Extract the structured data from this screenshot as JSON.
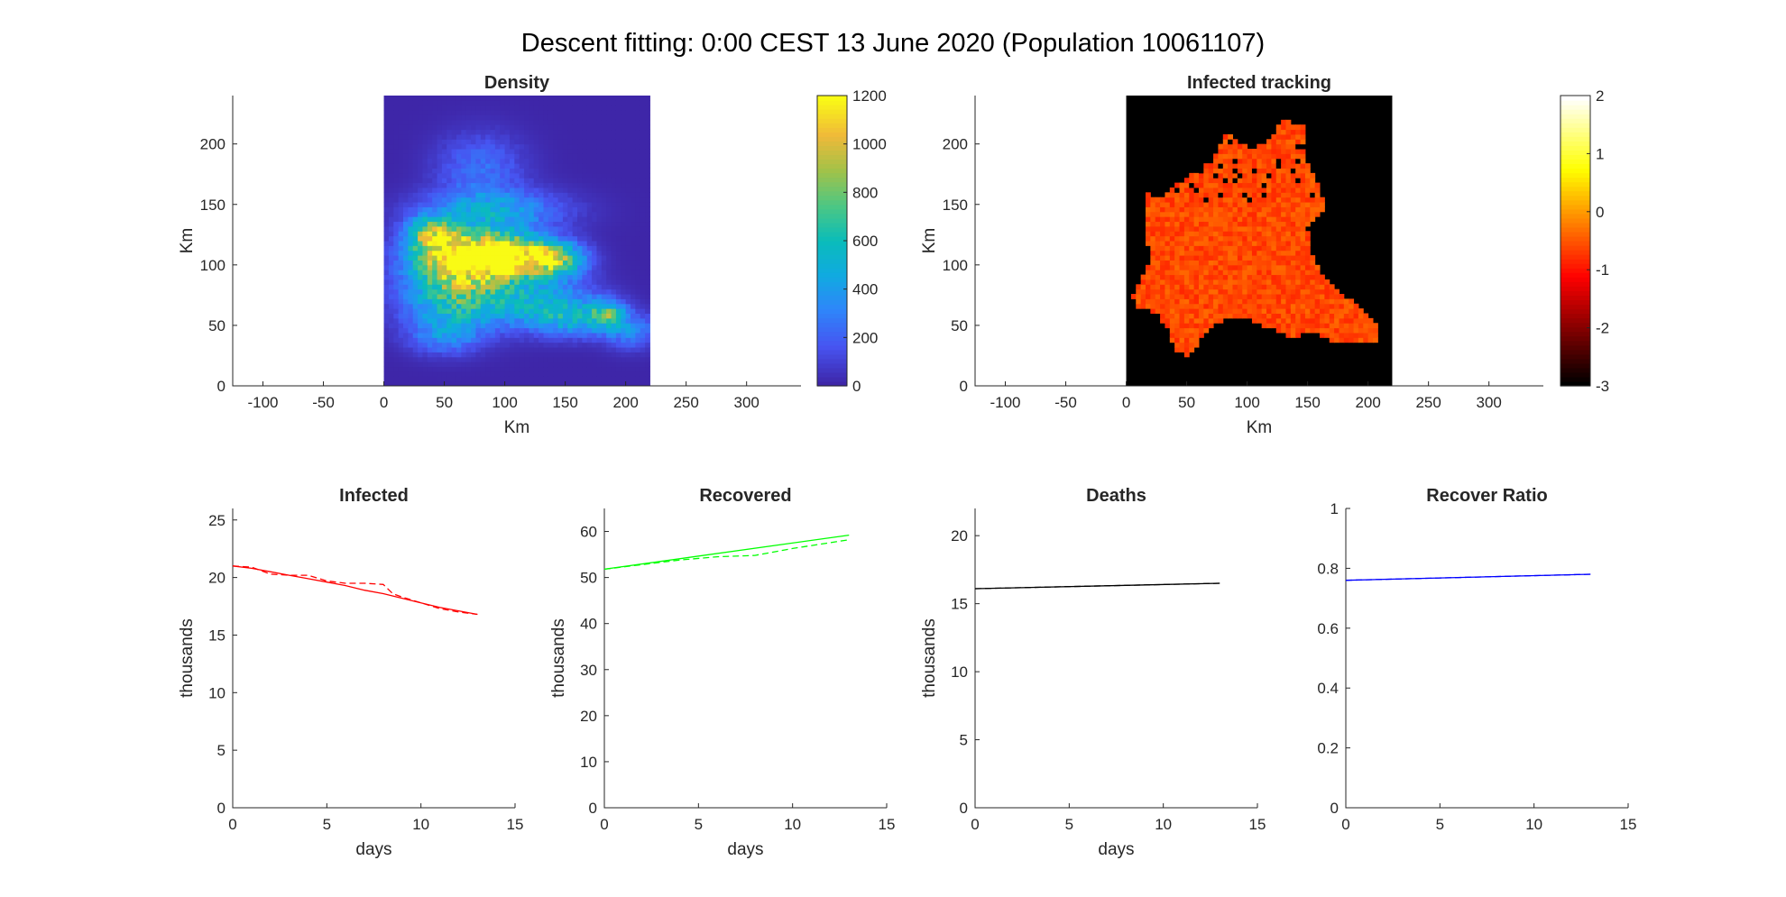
{
  "figure_title": "Descent fitting: 0:00 CEST 13 June 2020 (Population 10061107)",
  "colors": {
    "infected": "#ff0000",
    "recovered": "#00ff00",
    "deaths": "#000000",
    "recover_ratio": "#0000ff",
    "map_background_density": "#3e26a8",
    "map_background_tracking": "#000000"
  },
  "chart_data": [
    {
      "type": "heatmap",
      "title": "Density",
      "xlabel": "Km",
      "ylabel": "Km",
      "xlim": [
        -125,
        345
      ],
      "ylim": [
        0,
        240
      ],
      "xticks": [
        -100,
        -50,
        0,
        50,
        100,
        150,
        200,
        250,
        300
      ],
      "yticks": [
        0,
        50,
        100,
        150,
        200
      ],
      "data_extent_x": [
        0,
        220
      ],
      "data_extent_y": [
        0,
        240
      ],
      "colormap": "parula",
      "colorbar": {
        "range": [
          0,
          1200
        ],
        "ticks": [
          0,
          200,
          400,
          600,
          800,
          1000,
          1200
        ]
      },
      "blobs": [
        {
          "x": 65,
          "y": 105,
          "value": 1050,
          "sx": 30,
          "sy": 16
        },
        {
          "x": 100,
          "y": 108,
          "value": 950,
          "sx": 25,
          "sy": 12
        },
        {
          "x": 140,
          "y": 105,
          "value": 800,
          "sx": 18,
          "sy": 10
        },
        {
          "x": 40,
          "y": 125,
          "value": 700,
          "sx": 14,
          "sy": 10
        },
        {
          "x": 60,
          "y": 70,
          "value": 600,
          "sx": 30,
          "sy": 18
        },
        {
          "x": 130,
          "y": 70,
          "value": 450,
          "sx": 30,
          "sy": 14
        },
        {
          "x": 185,
          "y": 60,
          "value": 500,
          "sx": 10,
          "sy": 8
        },
        {
          "x": 90,
          "y": 145,
          "value": 420,
          "sx": 40,
          "sy": 12
        },
        {
          "x": 80,
          "y": 180,
          "value": 240,
          "sx": 25,
          "sy": 20
        },
        {
          "x": 160,
          "y": 55,
          "value": 380,
          "sx": 25,
          "sy": 10
        },
        {
          "x": 205,
          "y": 45,
          "value": 280,
          "sx": 15,
          "sy": 10
        },
        {
          "x": 50,
          "y": 40,
          "value": 250,
          "sx": 20,
          "sy": 10
        }
      ]
    },
    {
      "type": "heatmap",
      "title": "Infected tracking",
      "xlabel": "Km",
      "ylabel": "Km",
      "xlim": [
        -125,
        345
      ],
      "ylim": [
        0,
        240
      ],
      "xticks": [
        -100,
        -50,
        0,
        50,
        100,
        150,
        200,
        250,
        300
      ],
      "yticks": [
        0,
        50,
        100,
        150,
        200
      ],
      "data_extent_x": [
        0,
        220
      ],
      "data_extent_y": [
        0,
        240
      ],
      "colormap": "hot",
      "colorbar": {
        "range": [
          -3,
          2
        ],
        "ticks": [
          -3,
          -2,
          -1,
          0,
          1,
          2
        ]
      },
      "region_polygon": [
        [
          15,
          160
        ],
        [
          30,
          155
        ],
        [
          40,
          165
        ],
        [
          55,
          175
        ],
        [
          70,
          185
        ],
        [
          80,
          205
        ],
        [
          85,
          210
        ],
        [
          95,
          200
        ],
        [
          105,
          195
        ],
        [
          120,
          205
        ],
        [
          130,
          220
        ],
        [
          150,
          215
        ],
        [
          150,
          185
        ],
        [
          160,
          165
        ],
        [
          165,
          145
        ],
        [
          150,
          130
        ],
        [
          155,
          105
        ],
        [
          160,
          95
        ],
        [
          180,
          75
        ],
        [
          200,
          60
        ],
        [
          210,
          45
        ],
        [
          205,
          35
        ],
        [
          170,
          38
        ],
        [
          150,
          45
        ],
        [
          140,
          40
        ],
        [
          125,
          45
        ],
        [
          100,
          55
        ],
        [
          80,
          55
        ],
        [
          65,
          45
        ],
        [
          60,
          35
        ],
        [
          50,
          25
        ],
        [
          40,
          30
        ],
        [
          35,
          45
        ],
        [
          25,
          60
        ],
        [
          10,
          65
        ],
        [
          5,
          75
        ],
        [
          10,
          85
        ],
        [
          20,
          105
        ],
        [
          15,
          130
        ]
      ],
      "base_value": -0.6
    },
    {
      "type": "line",
      "title": "Infected",
      "xlabel": "days",
      "ylabel": "thousands",
      "xlim": [
        0,
        15
      ],
      "ylim": [
        0,
        26
      ],
      "xticks": [
        0,
        5,
        10,
        15
      ],
      "yticks": [
        0,
        5,
        10,
        15,
        20,
        25
      ],
      "color": "#ff0000",
      "series": [
        {
          "style": "solid",
          "x": [
            0,
            1,
            2,
            3,
            4,
            5,
            6,
            7,
            8,
            9,
            10,
            11,
            12,
            13
          ],
          "y": [
            21.0,
            20.8,
            20.5,
            20.2,
            19.9,
            19.6,
            19.3,
            18.9,
            18.6,
            18.2,
            17.8,
            17.4,
            17.1,
            16.8
          ]
        },
        {
          "style": "dashed",
          "x": [
            0,
            1,
            2,
            3,
            4,
            5,
            6,
            7,
            8,
            8.5,
            9,
            10,
            11,
            12,
            13
          ],
          "y": [
            21.0,
            20.9,
            20.3,
            20.2,
            20.2,
            19.7,
            19.5,
            19.5,
            19.4,
            18.6,
            18.3,
            17.8,
            17.3,
            17.0,
            16.8
          ]
        }
      ]
    },
    {
      "type": "line",
      "title": "Recovered",
      "xlabel": "days",
      "ylabel": "thousands",
      "xlim": [
        0,
        15
      ],
      "ylim": [
        0,
        65
      ],
      "xticks": [
        0,
        5,
        10,
        15
      ],
      "yticks": [
        0,
        10,
        20,
        30,
        40,
        50,
        60
      ],
      "color": "#00ff00",
      "series": [
        {
          "style": "solid",
          "x": [
            0,
            13
          ],
          "y": [
            51.8,
            59.2
          ]
        },
        {
          "style": "dashed",
          "x": [
            0,
            2,
            4,
            6,
            8,
            10,
            13
          ],
          "y": [
            51.8,
            52.8,
            53.8,
            54.5,
            54.8,
            56.3,
            58.2
          ]
        }
      ]
    },
    {
      "type": "line",
      "title": "Deaths",
      "xlabel": "days",
      "ylabel": "thousands",
      "xlim": [
        0,
        15
      ],
      "ylim": [
        0,
        22
      ],
      "xticks": [
        0,
        5,
        10,
        15
      ],
      "yticks": [
        0,
        5,
        10,
        15,
        20
      ],
      "color": "#000000",
      "series": [
        {
          "style": "solid",
          "x": [
            0,
            13
          ],
          "y": [
            16.1,
            16.5
          ]
        },
        {
          "style": "dashed",
          "x": [
            0,
            13
          ],
          "y": [
            16.1,
            16.5
          ]
        }
      ]
    },
    {
      "type": "line",
      "title": "Recover Ratio",
      "xlabel": "",
      "ylabel": "",
      "xlim": [
        0,
        15
      ],
      "ylim": [
        0,
        1
      ],
      "xticks": [
        0,
        5,
        10,
        15
      ],
      "yticks": [
        0,
        0.2,
        0.4,
        0.6,
        0.8,
        1
      ],
      "color": "#0000ff",
      "series": [
        {
          "style": "solid",
          "x": [
            0,
            13
          ],
          "y": [
            0.76,
            0.78
          ]
        },
        {
          "style": "dashed",
          "x": [
            0,
            13
          ],
          "y": [
            0.76,
            0.78
          ]
        }
      ]
    }
  ]
}
